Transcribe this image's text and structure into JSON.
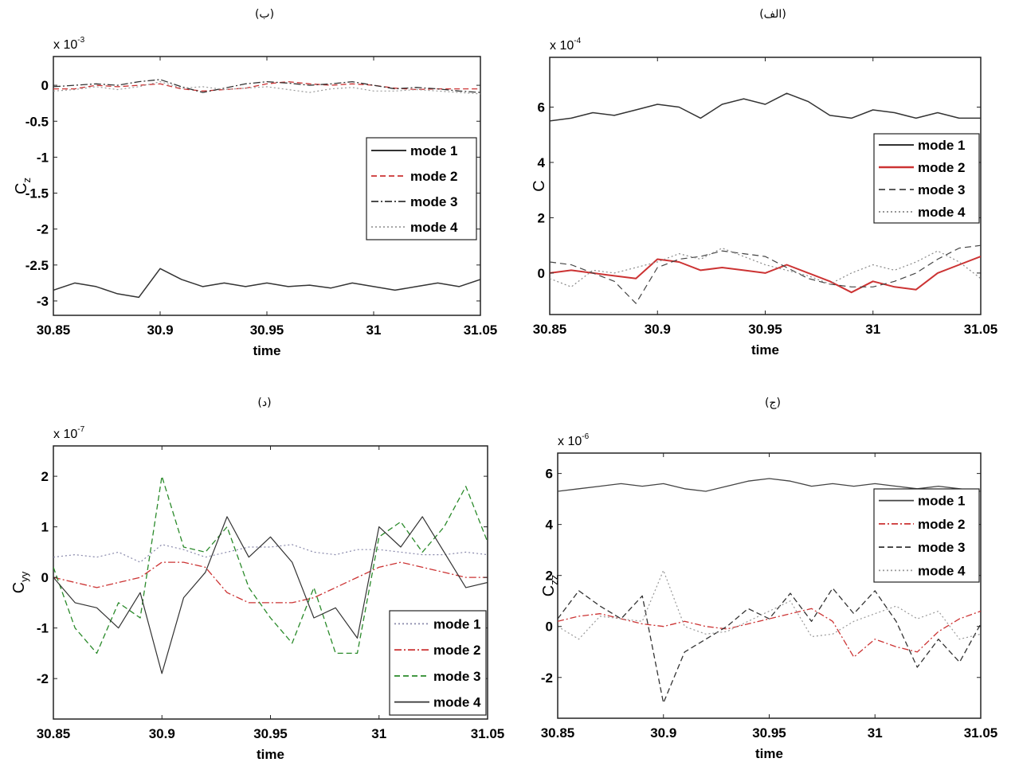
{
  "chart_data": [
    {
      "type": "line",
      "panel_label": "(الف)",
      "multiplier_label": "x 10",
      "multiplier_exp": "-4",
      "ylabel": "C",
      "ylabel_sub": "",
      "xlabel": "time",
      "xlim": [
        30.85,
        31.05
      ],
      "ylim": [
        -1.5,
        7.8
      ],
      "xticks": [
        30.85,
        30.9,
        30.95,
        31,
        31.05
      ],
      "xtick_labels": [
        "30.85",
        "30.9",
        "30.95",
        "31",
        "31.05"
      ],
      "yticks": [
        0,
        2,
        4,
        6
      ],
      "ytick_labels": [
        "0",
        "2",
        "4",
        "6"
      ],
      "legend_position": "top-right",
      "grid": false,
      "x": [
        30.85,
        30.86,
        30.87,
        30.88,
        30.89,
        30.9,
        30.91,
        30.92,
        30.93,
        30.94,
        30.95,
        30.96,
        30.97,
        30.98,
        30.99,
        31.0,
        31.01,
        31.02,
        31.03,
        31.04,
        31.05
      ],
      "series": [
        {
          "name": "mode 1",
          "color": "#333333",
          "dash": "solid",
          "width": 1.5,
          "values": [
            5.5,
            5.6,
            5.8,
            5.7,
            5.9,
            6.1,
            6.0,
            5.6,
            6.1,
            6.3,
            6.1,
            6.5,
            6.2,
            5.7,
            5.6,
            5.9,
            5.8,
            5.6,
            5.8,
            5.6,
            5.6
          ]
        },
        {
          "name": "mode 2",
          "color": "#cc3333",
          "dash": "solid",
          "width": 2,
          "values": [
            0.0,
            0.1,
            0.0,
            -0.1,
            -0.2,
            0.5,
            0.4,
            0.1,
            0.2,
            0.1,
            0.0,
            0.3,
            0.0,
            -0.3,
            -0.7,
            -0.3,
            -0.5,
            -0.6,
            0.0,
            0.3,
            0.6
          ]
        },
        {
          "name": "mode 3",
          "color": "#444444",
          "dash": "8,5",
          "width": 1.2,
          "values": [
            0.4,
            0.3,
            0.0,
            -0.3,
            -1.1,
            0.2,
            0.5,
            0.6,
            0.8,
            0.7,
            0.6,
            0.2,
            -0.2,
            -0.4,
            -0.5,
            -0.5,
            -0.3,
            0.0,
            0.5,
            0.9,
            1.0
          ]
        },
        {
          "name": "mode 4",
          "color": "#888888",
          "dash": "2,3",
          "width": 1.2,
          "values": [
            -0.2,
            -0.5,
            0.1,
            0.0,
            0.2,
            0.4,
            0.7,
            0.5,
            0.9,
            0.6,
            0.3,
            0.1,
            -0.1,
            -0.4,
            0.0,
            0.3,
            0.1,
            0.4,
            0.8,
            0.4,
            -0.2
          ]
        }
      ]
    },
    {
      "type": "line",
      "panel_label": "(ب)",
      "multiplier_label": "x 10",
      "multiplier_exp": "-3",
      "ylabel": "C",
      "ylabel_sub": "z",
      "xlabel": "time",
      "xlim": [
        30.85,
        31.05
      ],
      "ylim": [
        -3.2,
        0.4
      ],
      "xticks": [
        30.85,
        30.9,
        30.95,
        31,
        31.05
      ],
      "xtick_labels": [
        "30.85",
        "30.9",
        "30.95",
        "31",
        "31.05"
      ],
      "yticks": [
        0,
        -0.5,
        -1,
        -1.5,
        -2,
        -2.5,
        -3
      ],
      "ytick_labels": [
        "0",
        "-0.5",
        "-1",
        "-1.5",
        "-2",
        "-2.5",
        "-3"
      ],
      "legend_position": "center-right",
      "grid": false,
      "x": [
        30.85,
        30.86,
        30.87,
        30.88,
        30.89,
        30.9,
        30.91,
        30.92,
        30.93,
        30.94,
        30.95,
        30.96,
        30.97,
        30.98,
        30.99,
        31.0,
        31.01,
        31.02,
        31.03,
        31.04,
        31.05
      ],
      "series": [
        {
          "name": "mode 1",
          "color": "#333333",
          "dash": "solid",
          "width": 1.5,
          "values": [
            -2.85,
            -2.75,
            -2.8,
            -2.9,
            -2.95,
            -2.55,
            -2.7,
            -2.8,
            -2.75,
            -2.8,
            -2.75,
            -2.8,
            -2.78,
            -2.82,
            -2.75,
            -2.8,
            -2.85,
            -2.8,
            -2.75,
            -2.8,
            -2.7
          ]
        },
        {
          "name": "mode 2",
          "color": "#cc3333",
          "dash": "7,4",
          "width": 1.3,
          "values": [
            -0.05,
            -0.05,
            0.0,
            -0.02,
            0.0,
            0.02,
            -0.05,
            -0.08,
            -0.06,
            -0.04,
            0.02,
            0.05,
            0.02,
            0.0,
            0.02,
            0.0,
            -0.04,
            -0.06,
            -0.05,
            -0.05,
            -0.05
          ]
        },
        {
          "name": "mode 3",
          "color": "#333333",
          "dash": "9,3,2,3",
          "width": 1.3,
          "values": [
            -0.02,
            0.0,
            0.02,
            0.0,
            0.05,
            0.08,
            -0.02,
            -0.1,
            -0.04,
            0.02,
            0.05,
            0.03,
            0.0,
            0.02,
            0.05,
            0.0,
            -0.05,
            -0.03,
            -0.05,
            -0.08,
            -0.1
          ]
        },
        {
          "name": "mode 4",
          "color": "#999999",
          "dash": "2,3",
          "width": 1.2,
          "values": [
            -0.08,
            -0.06,
            -0.02,
            -0.06,
            -0.02,
            0.05,
            -0.04,
            -0.02,
            -0.06,
            -0.04,
            -0.02,
            -0.06,
            -0.1,
            -0.05,
            -0.03,
            -0.08,
            -0.08,
            -0.06,
            -0.08,
            -0.1,
            -0.12
          ]
        }
      ]
    },
    {
      "type": "line",
      "panel_label": "(ج)",
      "multiplier_label": "x 10",
      "multiplier_exp": "-6",
      "ylabel": "C",
      "ylabel_sub": "zz",
      "xlabel": "time",
      "xlim": [
        30.85,
        31.05
      ],
      "ylim": [
        -3.6,
        6.8
      ],
      "xticks": [
        30.85,
        30.9,
        30.95,
        31,
        31.05
      ],
      "xtick_labels": [
        "30.85",
        "30.9",
        "30.95",
        "31",
        "31.05"
      ],
      "yticks": [
        -2,
        0,
        2,
        4,
        6
      ],
      "ytick_labels": [
        "-2",
        "0",
        "2",
        "4",
        "6"
      ],
      "legend_position": "top-right",
      "grid": false,
      "x": [
        30.85,
        30.86,
        30.87,
        30.88,
        30.89,
        30.9,
        30.91,
        30.92,
        30.93,
        30.94,
        30.95,
        30.96,
        30.97,
        30.98,
        30.99,
        31.0,
        31.01,
        31.02,
        31.03,
        31.04,
        31.05
      ],
      "series": [
        {
          "name": "mode 1",
          "color": "#444444",
          "dash": "solid",
          "width": 1.3,
          "values": [
            5.3,
            5.4,
            5.5,
            5.6,
            5.5,
            5.6,
            5.4,
            5.3,
            5.5,
            5.7,
            5.8,
            5.7,
            5.5,
            5.6,
            5.5,
            5.6,
            5.5,
            5.4,
            5.5,
            5.4,
            5.3
          ]
        },
        {
          "name": "mode 2",
          "color": "#cc3333",
          "dash": "8,3,2,3",
          "width": 1.3,
          "values": [
            0.2,
            0.4,
            0.5,
            0.3,
            0.1,
            0.0,
            0.2,
            0.0,
            -0.1,
            0.1,
            0.3,
            0.5,
            0.7,
            0.2,
            -1.2,
            -0.5,
            -0.8,
            -1.0,
            -0.2,
            0.3,
            0.6
          ]
        },
        {
          "name": "mode 3",
          "color": "#333333",
          "dash": "7,4",
          "width": 1.3,
          "values": [
            0.3,
            1.4,
            0.8,
            0.3,
            1.2,
            -3.0,
            -1.0,
            -0.5,
            0.0,
            0.7,
            0.3,
            1.3,
            0.2,
            1.5,
            0.5,
            1.4,
            0.2,
            -1.6,
            -0.5,
            -1.4,
            0.1
          ]
        },
        {
          "name": "mode 4",
          "color": "#999999",
          "dash": "2,3",
          "width": 1.2,
          "values": [
            0.0,
            -0.5,
            0.4,
            0.3,
            0.2,
            2.2,
            0.0,
            -0.3,
            -0.2,
            0.2,
            0.6,
            1.0,
            -0.4,
            -0.3,
            0.2,
            0.5,
            0.8,
            0.3,
            0.6,
            -0.5,
            -0.3
          ]
        }
      ]
    },
    {
      "type": "line",
      "panel_label": "(د)",
      "multiplier_label": "x 10",
      "multiplier_exp": "-7",
      "ylabel": "C",
      "ylabel_sub": "yy",
      "xlabel": "time",
      "xlim": [
        30.85,
        31.05
      ],
      "ylim": [
        -2.8,
        2.6
      ],
      "xticks": [
        30.85,
        30.9,
        30.95,
        31,
        31.05
      ],
      "xtick_labels": [
        "30.85",
        "30.9",
        "30.95",
        "31",
        "31.05"
      ],
      "yticks": [
        -2,
        -1,
        0,
        1,
        2
      ],
      "ytick_labels": [
        "-2",
        "-1",
        "0",
        "1",
        "2"
      ],
      "legend_position": "bottom-right",
      "grid": false,
      "x": [
        30.85,
        30.86,
        30.87,
        30.88,
        30.89,
        30.9,
        30.91,
        30.92,
        30.93,
        30.94,
        30.95,
        30.96,
        30.97,
        30.98,
        30.99,
        31.0,
        31.01,
        31.02,
        31.03,
        31.04,
        31.05
      ],
      "series": [
        {
          "name": "mode 1",
          "color": "#8888aa",
          "dash": "2,3",
          "width": 1.2,
          "values": [
            0.4,
            0.45,
            0.4,
            0.5,
            0.3,
            0.65,
            0.55,
            0.4,
            0.5,
            0.6,
            0.6,
            0.65,
            0.5,
            0.45,
            0.55,
            0.55,
            0.5,
            0.45,
            0.45,
            0.5,
            0.45
          ]
        },
        {
          "name": "mode 2",
          "color": "#cc3333",
          "dash": "9,3,2,3",
          "width": 1.3,
          "values": [
            0.0,
            -0.1,
            -0.2,
            -0.1,
            0.0,
            0.3,
            0.3,
            0.2,
            -0.3,
            -0.5,
            -0.5,
            -0.5,
            -0.4,
            -0.2,
            0.0,
            0.2,
            0.3,
            0.2,
            0.1,
            0.0,
            0.0
          ]
        },
        {
          "name": "mode 3",
          "color": "#2a8a2a",
          "dash": "7,4",
          "width": 1.3,
          "values": [
            0.2,
            -1.0,
            -1.5,
            -0.5,
            -0.8,
            2.0,
            0.6,
            0.5,
            1.0,
            -0.2,
            -0.8,
            -1.3,
            -0.2,
            -1.5,
            -1.5,
            0.8,
            1.1,
            0.5,
            1.0,
            1.8,
            0.7
          ]
        },
        {
          "name": "mode 4",
          "color": "#333333",
          "dash": "solid",
          "width": 1.2,
          "values": [
            0.0,
            -0.5,
            -0.6,
            -1.0,
            -0.3,
            -1.9,
            -0.4,
            0.1,
            1.2,
            0.4,
            0.8,
            0.3,
            -0.8,
            -0.6,
            -1.2,
            1.0,
            0.6,
            1.2,
            0.5,
            -0.2,
            -0.1
          ]
        }
      ]
    }
  ]
}
